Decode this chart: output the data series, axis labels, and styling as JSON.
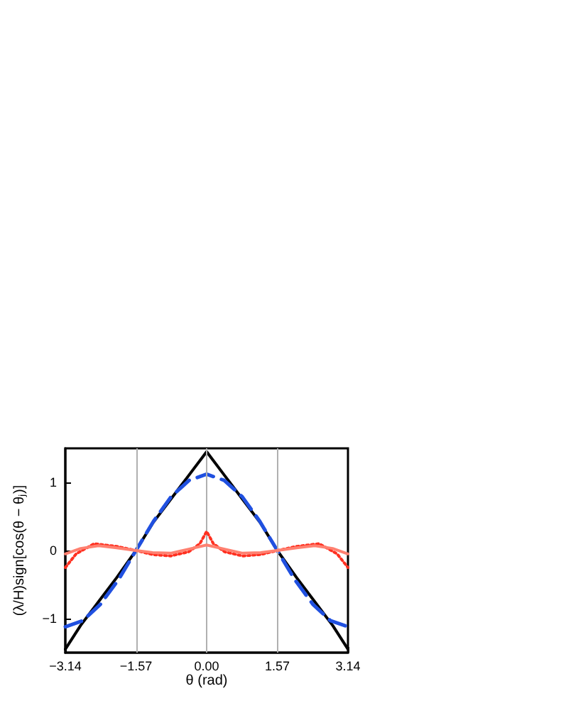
{
  "chart_data": {
    "type": "line",
    "xlabel": "θ (rad)",
    "ylabel": "(λ/H)sign[cos(θ − θⱼ)]",
    "xlim": [
      -3.14,
      3.14
    ],
    "ylim": [
      -1.5,
      1.5
    ],
    "xticks": [
      {
        "value": -3.14,
        "label": "−3.14"
      },
      {
        "value": -1.57,
        "label": "−1.57"
      },
      {
        "value": 0,
        "label": "0.00"
      },
      {
        "value": 1.57,
        "label": "1.57"
      },
      {
        "value": 3.14,
        "label": "3.14"
      }
    ],
    "yticks": [
      {
        "value": -1,
        "label": "−1"
      },
      0,
      1
    ],
    "grid": false,
    "marker": "none",
    "ref_lines": [
      {
        "axis": "x",
        "value": -1.57,
        "color": "#b0b0b0"
      },
      {
        "axis": "x",
        "value": 0,
        "color": "#b0b0b0"
      },
      {
        "axis": "x",
        "value": 1.57,
        "color": "#b0b0b0"
      }
    ],
    "series": [
      {
        "color": "#000000",
        "line_style": "solid",
        "x": [
          -3.14,
          -2.8,
          -2.4,
          -2.0,
          -1.57,
          -1.2,
          -0.8,
          -0.4,
          0,
          0.4,
          0.8,
          1.2,
          1.57,
          2.0,
          2.4,
          2.8,
          3.14
        ],
        "values": [
          -1.45,
          -1.1,
          -0.75,
          -0.4,
          0,
          0.4,
          0.75,
          1.1,
          1.45,
          1.1,
          0.75,
          0.4,
          0,
          -0.4,
          -0.75,
          -1.1,
          -1.45
        ]
      },
      {
        "color": "#2050e0",
        "line_style": "dashed",
        "x": [
          -3.14,
          -2.75,
          -2.36,
          -1.96,
          -1.57,
          -1.18,
          -0.79,
          -0.39,
          0,
          0.39,
          0.79,
          1.18,
          1.57,
          1.96,
          2.36,
          2.75,
          3.14
        ],
        "values": [
          -1.12,
          -1.03,
          -0.79,
          -0.43,
          0,
          0.43,
          0.79,
          1.03,
          1.12,
          1.03,
          0.79,
          0.43,
          0,
          -0.43,
          -0.79,
          -1.03,
          -1.12
        ]
      },
      {
        "color": "#ff3020",
        "line_style": "dotted",
        "x": [
          -3.14,
          -2.9,
          -2.5,
          -2.0,
          -1.57,
          -1.2,
          -0.8,
          -0.4,
          -0.15,
          0,
          0.15,
          0.4,
          0.8,
          1.2,
          1.57,
          2.0,
          2.5,
          2.9,
          3.14
        ],
        "values": [
          -0.25,
          -0.05,
          0.1,
          0.06,
          0,
          -0.06,
          -0.08,
          -0.02,
          0.1,
          0.28,
          0.1,
          -0.02,
          -0.08,
          -0.06,
          0,
          0.06,
          0.1,
          -0.05,
          -0.25
        ]
      },
      {
        "color": "#ff8070",
        "line_style": "solid",
        "x": [
          -3.14,
          -2.8,
          -2.4,
          -2.0,
          -1.57,
          -1.2,
          -0.8,
          -0.4,
          0,
          0.4,
          0.8,
          1.2,
          1.57,
          2.0,
          2.4,
          2.8,
          3.14
        ],
        "values": [
          -0.05,
          0.03,
          0.07,
          0.04,
          0,
          -0.03,
          -0.04,
          0.02,
          0.08,
          0.02,
          -0.04,
          -0.03,
          0,
          0.04,
          0.07,
          0.03,
          -0.05
        ]
      }
    ]
  }
}
